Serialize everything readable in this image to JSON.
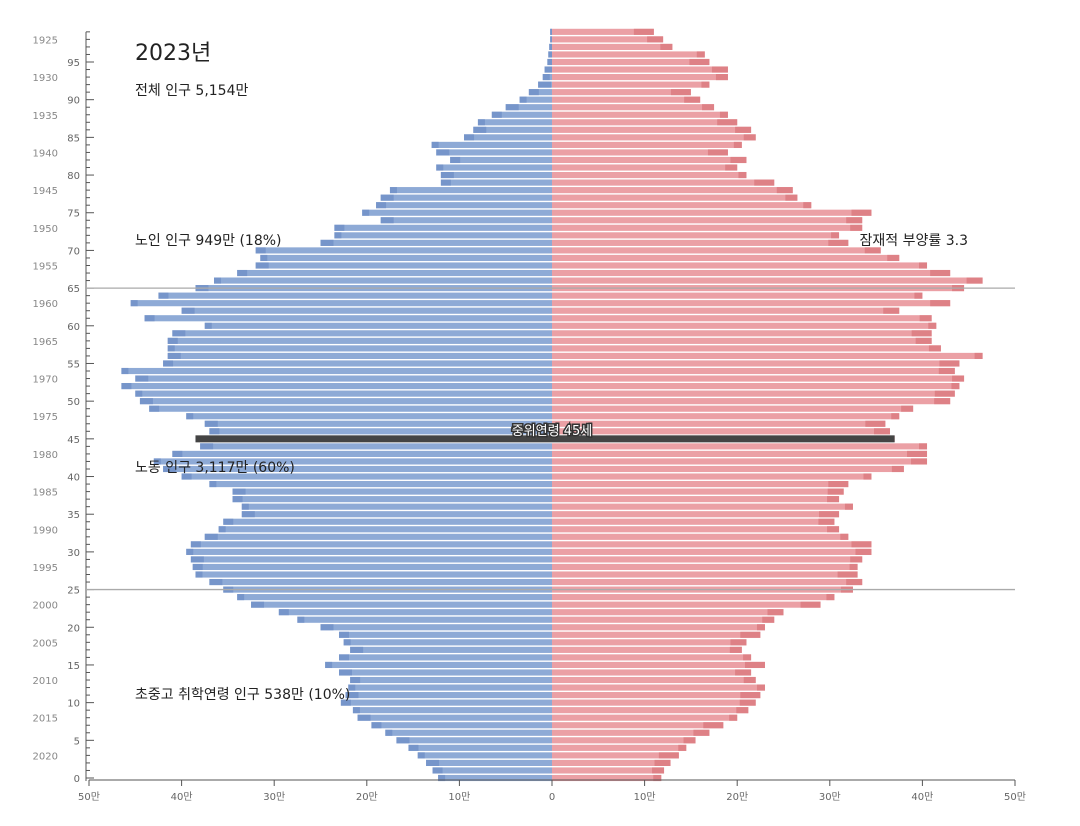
{
  "colors": {
    "male_bar": "#8eaad6",
    "male_dark": "#6c8cc4",
    "female_bar": "#eba0a5",
    "female_dark": "#d9777c",
    "median_line": "#444444",
    "threshold_line": "#aaaaaa"
  },
  "labels": {
    "title": "2023년",
    "total": "전체 인구   5,154만",
    "elderly": "노인 인구   949만   (18%)",
    "dependency": "잠재적 부양률 3.3",
    "median": "중위연령 45세",
    "working": "노동 인구   3,117만   (60%)",
    "school": "초중고 취학연령 인구   538만   (10%)"
  },
  "chart_data": {
    "type": "bar",
    "orientation": "horizontal-population-pyramid",
    "title": "2023년",
    "x_axis": {
      "unit": "만",
      "ticks": [
        "50만",
        "40만",
        "30만",
        "20만",
        "10만",
        "0",
        "10만",
        "20만",
        "30만",
        "40만",
        "50만"
      ],
      "range_each_side": [
        0,
        50
      ]
    },
    "age_ticks": [
      0,
      5,
      10,
      15,
      20,
      25,
      30,
      35,
      40,
      45,
      50,
      55,
      60,
      65,
      70,
      75,
      80,
      85,
      90,
      95
    ],
    "birth_year_ticks": [
      1925,
      1930,
      1935,
      1940,
      1945,
      1950,
      1955,
      1960,
      1965,
      1970,
      1975,
      1980,
      1985,
      1990,
      1995,
      2000,
      2005,
      2010,
      2015,
      2020
    ],
    "markers": {
      "median_age": 45,
      "working_age_lower": 25,
      "working_age_upper": 65
    },
    "series": [
      {
        "side": "left",
        "values_by_age_0_to_99": [
          12.3,
          12.9,
          13.6,
          14.5,
          15.5,
          16.8,
          18.0,
          19.5,
          21.0,
          21.5,
          22.8,
          22.3,
          22.0,
          21.8,
          23.0,
          24.5,
          23.0,
          21.8,
          22.5,
          23.0,
          25.0,
          27.5,
          29.5,
          32.5,
          34.0,
          35.5,
          37.0,
          38.5,
          38.8,
          39.0,
          39.5,
          39.0,
          37.5,
          36.0,
          35.5,
          33.5,
          33.5,
          34.5,
          34.5,
          37.0,
          40.0,
          42.0,
          43.0,
          41.0,
          38.0,
          38.5,
          37.0,
          37.5,
          39.5,
          43.5,
          44.5,
          45.0,
          46.5,
          45.0,
          46.5,
          42.0,
          41.5,
          41.5,
          41.5,
          41.0,
          37.5,
          44.0,
          40.0,
          45.5,
          42.5,
          38.5,
          36.5,
          34.0,
          32.0,
          31.5,
          32.0,
          25.0,
          23.5,
          23.5,
          18.5,
          20.5,
          19.0,
          18.5,
          17.5,
          12.0,
          12.0,
          12.5,
          11.0,
          12.5,
          13.0,
          9.5,
          8.5,
          8.0,
          6.5,
          5.0,
          3.5,
          2.5,
          1.5,
          1.0,
          0.8,
          0.5,
          0.4,
          0.3,
          0.2,
          0.2
        ]
      },
      {
        "side": "right",
        "values_by_age_0_to_99": [
          11.8,
          12.1,
          12.8,
          13.7,
          14.5,
          15.5,
          17.0,
          18.5,
          20.0,
          21.2,
          22.0,
          22.5,
          23.0,
          22.0,
          21.5,
          23.0,
          21.5,
          20.5,
          21.0,
          22.5,
          23.0,
          24.0,
          25.0,
          29.0,
          30.5,
          32.5,
          33.5,
          33.0,
          33.0,
          33.5,
          34.5,
          34.5,
          32.0,
          31.0,
          30.5,
          31.0,
          32.5,
          31.0,
          31.5,
          32.0,
          34.5,
          38.0,
          40.5,
          40.5,
          40.5,
          37.0,
          36.5,
          36.0,
          37.5,
          39.0,
          43.0,
          43.5,
          44.0,
          44.5,
          43.5,
          44.0,
          46.5,
          42.0,
          41.0,
          41.0,
          41.5,
          41.0,
          37.5,
          43.0,
          40.0,
          44.5,
          46.5,
          43.0,
          40.5,
          37.5,
          35.5,
          32.0,
          31.0,
          33.5,
          33.5,
          34.5,
          28.0,
          26.5,
          26.0,
          24.0,
          21.0,
          20.0,
          21.0,
          19.0,
          20.5,
          22.0,
          21.5,
          20.0,
          19.0,
          17.5,
          16.0,
          15.0,
          17.0,
          19.0,
          19.0,
          17.0,
          16.5,
          13.0,
          12.0,
          11.0
        ]
      }
    ]
  }
}
